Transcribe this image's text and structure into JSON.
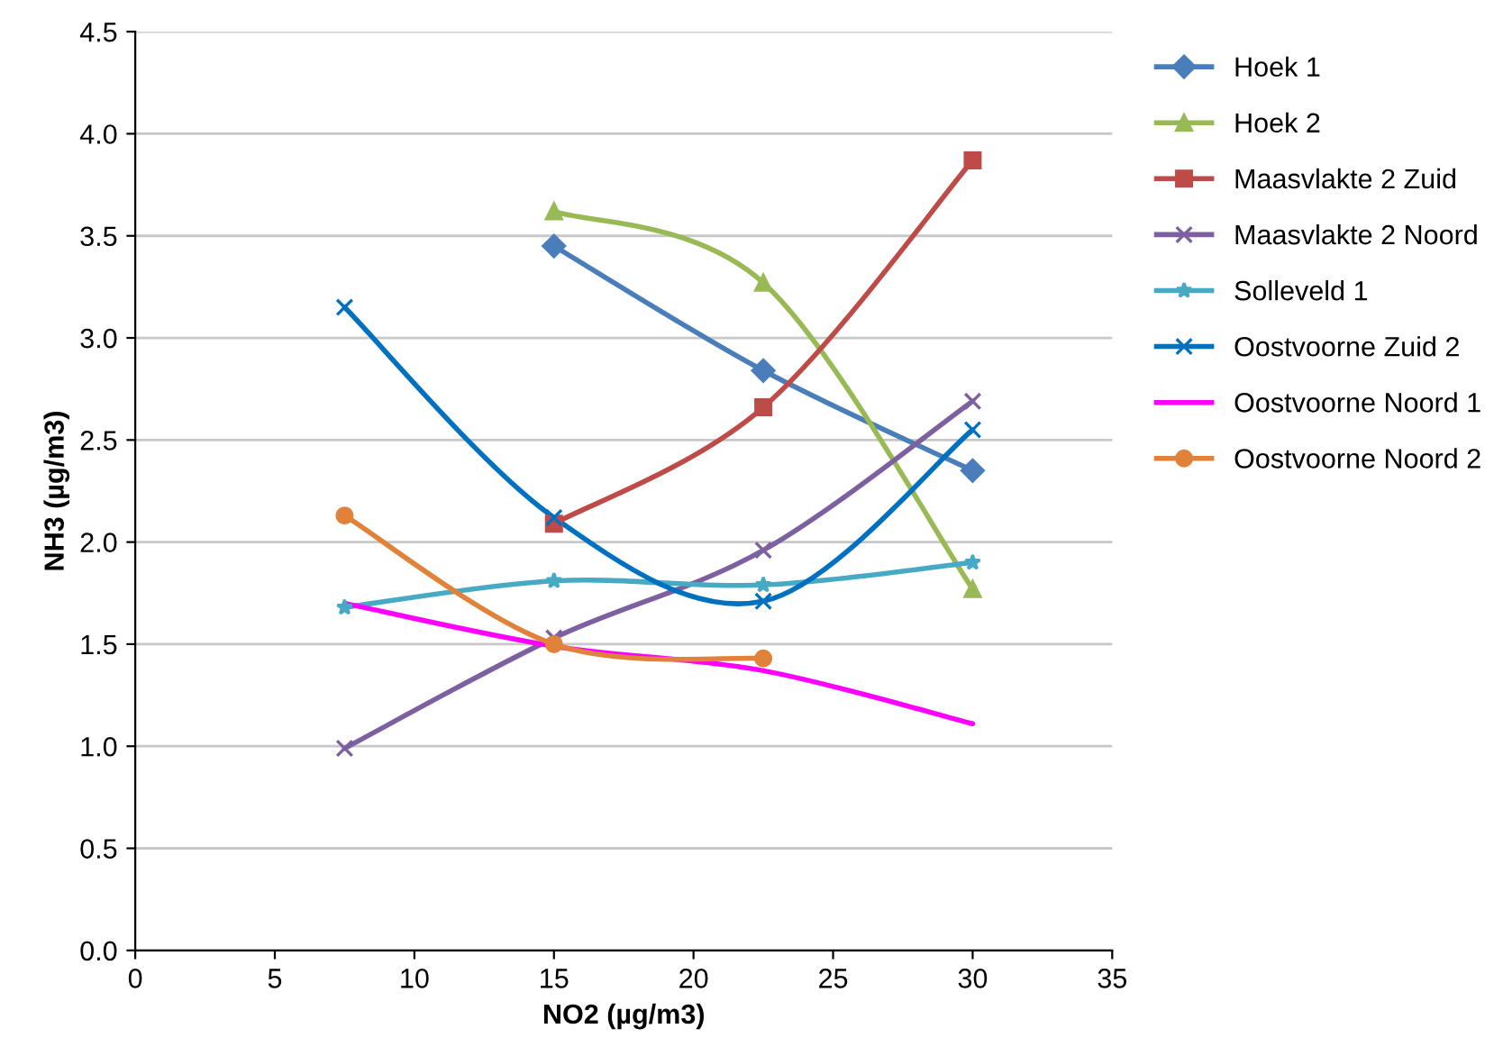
{
  "chart_data": {
    "type": "line",
    "xlabel": "NO2 (µg/m3)",
    "ylabel": "NH3 (µg/m3)",
    "xlim": [
      0,
      35
    ],
    "xticks": [
      0,
      5,
      10,
      15,
      20,
      25,
      30,
      35
    ],
    "ylim": [
      0,
      4.5
    ],
    "yticks": [
      {
        "value": 0,
        "label": "0.0"
      },
      0.5,
      {
        "value": 1,
        "label": "1.0"
      },
      1.5,
      {
        "value": 2,
        "label": "2.0"
      },
      2.5,
      {
        "value": 3,
        "label": "3.0"
      },
      3.5,
      {
        "value": 4,
        "label": "4.0"
      },
      4.5
    ],
    "grid": "y",
    "legend": "right",
    "line_style": "solid",
    "series": [
      {
        "name": "Hoek 1",
        "color": "#4a7ebb",
        "marker": "diamond",
        "x": [
          15,
          22.5,
          30
        ],
        "values": [
          3.45,
          2.84,
          2.35
        ]
      },
      {
        "name": "Hoek 2",
        "color": "#98b954",
        "marker": "triangle",
        "x": [
          15,
          22.5,
          30
        ],
        "values": [
          3.62,
          3.27,
          1.77
        ]
      },
      {
        "name": "Maasvlakte 2 Zuid",
        "color": "#be4b48",
        "marker": "square",
        "x": [
          15,
          22.5,
          30
        ],
        "values": [
          2.09,
          2.66,
          3.87
        ]
      },
      {
        "name": "Maasvlakte 2 Noord",
        "color": "#7d60a0",
        "marker": "cross",
        "x": [
          7.5,
          15,
          22.5,
          30
        ],
        "values": [
          0.99,
          1.53,
          1.96,
          2.69
        ]
      },
      {
        "name": "Solleveld 1",
        "color": "#46aac5",
        "marker": "star",
        "x": [
          7.5,
          15,
          22.5,
          30
        ],
        "values": [
          1.68,
          1.81,
          1.79,
          1.9
        ]
      },
      {
        "name": "Oostvoorne Zuid 2",
        "color": "#0070c0",
        "marker": "cross",
        "x": [
          7.5,
          15,
          22.5,
          30
        ],
        "values": [
          3.15,
          2.12,
          1.71,
          2.55
        ]
      },
      {
        "name": "Oostvoorne Noord 1",
        "color": "#ff00ff",
        "marker": "none",
        "x": [
          7.5,
          15,
          22.5,
          30
        ],
        "values": [
          1.7,
          1.49,
          1.37,
          1.11
        ]
      },
      {
        "name": "Oostvoorne Noord 2",
        "color": "#e0823a",
        "marker": "circle",
        "x": [
          7.5,
          15,
          22.5
        ],
        "values": [
          2.13,
          1.5,
          1.43
        ]
      }
    ]
  }
}
